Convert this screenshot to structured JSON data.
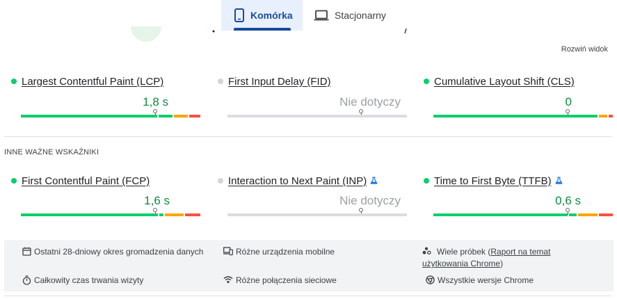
{
  "tabs": [
    {
      "label": "Komórka",
      "icon": "smartphone-icon",
      "active": true
    },
    {
      "label": "Stacjonarny",
      "icon": "laptop-icon",
      "active": false
    }
  ],
  "expand_label": "Rozwiń widok",
  "core_metrics": [
    {
      "name": "Largest Contentful Paint (LCP)",
      "value": "1,8 s",
      "status": "good",
      "has_data": true
    },
    {
      "name": "First Input Delay (FID)",
      "value": "Nie dotyczy",
      "status": "none",
      "has_data": false
    },
    {
      "name": "Cumulative Layout Shift (CLS)",
      "value": "0",
      "status": "good",
      "has_data": true
    }
  ],
  "other_section_title": "INNE WAŻNE WSKAŹNIKI",
  "other_metrics": [
    {
      "name": "First Contentful Paint (FCP)",
      "value": "1,6 s",
      "status": "good",
      "has_data": true,
      "experimental": false
    },
    {
      "name": "Interaction to Next Paint (INP)",
      "value": "Nie dotyczy",
      "status": "none",
      "has_data": false,
      "experimental": true
    },
    {
      "name": "Time to First Byte (TTFB)",
      "value": "0,6 s",
      "status": "good",
      "has_data": true,
      "experimental": true
    }
  ],
  "info": {
    "period": "Ostatni 28-dniowy okres gromadzenia danych",
    "devices": "Różne urządzenia mobilne",
    "samples_prefix": "Wiele próbek (",
    "samples_link": "Raport na temat użytkowania Chrome",
    "samples_suffix": ")",
    "duration": "Całkowity czas trwania wizyty",
    "connections": "Różne połączenia sieciowe",
    "versions": "Wszystkie wersje Chrome"
  },
  "colors": {
    "good": "#0cce6b",
    "needs_improvement": "#ffa400",
    "poor": "#ff4e42",
    "no_data": "#dadce0",
    "value_good": "#0d8a3f",
    "accent": "#1a4b9b"
  }
}
